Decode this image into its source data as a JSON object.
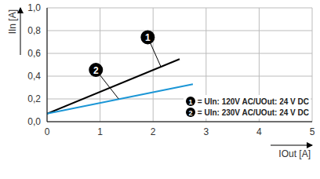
{
  "chart_data": {
    "type": "line",
    "x_label": "IOut [A]",
    "y_label": "IIn [A]",
    "xlim": [
      0,
      5
    ],
    "xticks": [
      0,
      1,
      2,
      3,
      4,
      5
    ],
    "ylim": [
      0,
      1
    ],
    "yticks": [
      {
        "value": 0,
        "label": "0,0"
      },
      {
        "value": 0.2,
        "label": "0,2"
      },
      {
        "value": 0.4,
        "label": "0,4"
      },
      {
        "value": 0.6,
        "label": "0,6"
      },
      {
        "value": 0.8,
        "label": "0,8"
      },
      {
        "value": 1,
        "label": "1,0"
      }
    ],
    "grid": true,
    "legend": "lower right",
    "series": [
      {
        "name": "= UIn: 120V AC/UOut: 24 V DC",
        "color": "#000000",
        "x": [
          0,
          2.5
        ],
        "values": [
          0.07,
          0.55
        ]
      },
      {
        "name": "= UIn: 230V AC/UOut: 24 V DC",
        "color": "#1b96d6",
        "x": [
          0,
          2.75
        ],
        "values": [
          0.07,
          0.33
        ]
      }
    ],
    "annotations": [
      {
        "text": "1",
        "x": 2.15,
        "y": 0.48
      },
      {
        "text": "2",
        "x": 1.35,
        "y": 0.2
      }
    ]
  }
}
